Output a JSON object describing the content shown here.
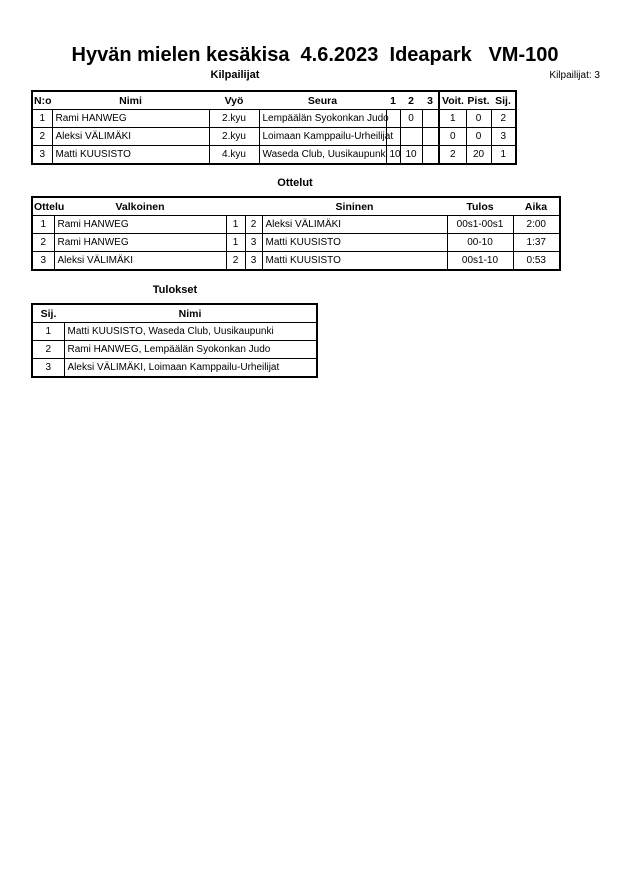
{
  "title": "Hyvän mielen kesäkisa  4.6.2023  Ideapark   VM-100",
  "competitors": {
    "heading": "Kilpailijat",
    "count_label": "Kilpailijat: 3",
    "columns": [
      "N:o",
      "Nimi",
      "Vyö",
      "Seura",
      "1",
      "2",
      "3",
      "Voit.",
      "Pist.",
      "Sij."
    ],
    "rows": [
      [
        "1",
        "Rami HANWEG",
        "2.kyu",
        "Lempäälän Syokonkan Judo",
        "",
        "0",
        "",
        "1",
        "0",
        "2"
      ],
      [
        "2",
        "Aleksi VÄLIMÄKI",
        "2.kyu",
        "Loimaan Kamppailu-Urheilijat",
        "",
        "",
        "",
        "0",
        "0",
        "3"
      ],
      [
        "3",
        "Matti KUUSISTO",
        "4.kyu",
        "Waseda Club, Uusikaupunki",
        "10",
        "10",
        "",
        "2",
        "20",
        "1"
      ]
    ]
  },
  "matches": {
    "heading": "Ottelut",
    "columns": [
      "Ottelu",
      "Valkoinen",
      "",
      "",
      "Sininen",
      "Tulos",
      "Aika"
    ],
    "rows": [
      [
        "1",
        "Rami HANWEG",
        "1",
        "2",
        "Aleksi VÄLIMÄKI",
        "00s1-00s1",
        "2:00"
      ],
      [
        "2",
        "Rami HANWEG",
        "1",
        "3",
        "Matti KUUSISTO",
        "00-10",
        "1:37"
      ],
      [
        "3",
        "Aleksi VÄLIMÄKI",
        "2",
        "3",
        "Matti KUUSISTO",
        "00s1-10",
        "0:53"
      ]
    ]
  },
  "results": {
    "heading": "Tulokset",
    "columns": [
      "Sij.",
      "Nimi"
    ],
    "rows": [
      [
        "1",
        "Matti KUUSISTO, Waseda Club, Uusikaupunki"
      ],
      [
        "2",
        "Rami HANWEG, Lempäälän Syokonkan Judo"
      ],
      [
        "3",
        "Aleksi VÄLIMÄKI, Loimaan Kamppailu-Urheilijat"
      ]
    ]
  }
}
